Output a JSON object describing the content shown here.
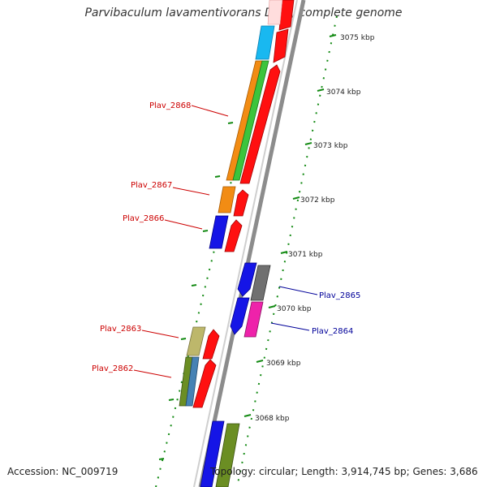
{
  "title": "Parvibaculum lavamentivorans DS-1, complete genome",
  "footer": {
    "accession": "Accession: NC_009719",
    "topology": "Topology: circular; Length: 3,914,745 bp; Genes: 3,686"
  },
  "scale": {
    "unit_label_suffix": "kbp",
    "ticks": [
      {
        "label": "3075 kbp"
      },
      {
        "label": "3074 kbp"
      },
      {
        "label": "3073 kbp"
      },
      {
        "label": "3072 kbp"
      },
      {
        "label": "3071 kbp"
      },
      {
        "label": "3070 kbp"
      },
      {
        "label": "3069 kbp"
      },
      {
        "label": "3068 kbp"
      }
    ]
  },
  "gene_labels": [
    {
      "name": "Plav_2868",
      "strand": "minus",
      "color": "#cc0000"
    },
    {
      "name": "Plav_2867",
      "strand": "minus",
      "color": "#cc0000"
    },
    {
      "name": "Plav_2866",
      "strand": "minus",
      "color": "#cc0000"
    },
    {
      "name": "Plav_2865",
      "strand": "plus",
      "color": "#000099"
    },
    {
      "name": "Plav_2864",
      "strand": "plus",
      "color": "#000099"
    },
    {
      "name": "Plav_2863",
      "strand": "minus",
      "color": "#cc0000"
    },
    {
      "name": "Plav_2862",
      "strand": "minus",
      "color": "#cc0000"
    }
  ],
  "colors": {
    "backbone": "#8c8c8c",
    "tick_green": "#138a13",
    "minus_label": "#cc0000",
    "plus_label": "#000099"
  }
}
